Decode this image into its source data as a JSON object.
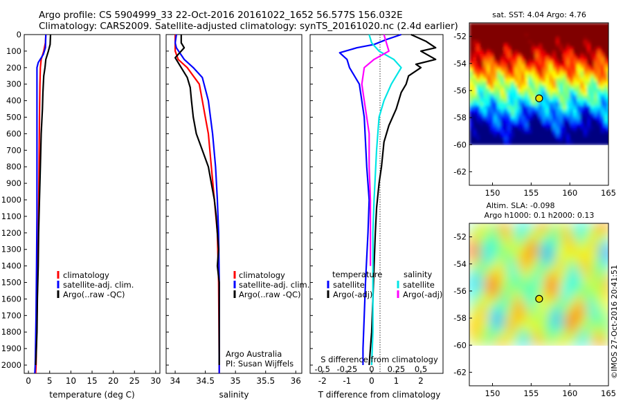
{
  "header": {
    "line1": "Argo profile: CS 5904999_33 22-Oct-2016 20161022_1652 56.577S 156.032E",
    "line2": "Climatology: CARS2009. Satellite-adjusted climatology: synTS_20161020.nc (2.4d earlier)"
  },
  "watermark": "©IMOS 27-Oct-2016 20:41:51",
  "colors": {
    "climatology": "#ff0000",
    "satellite": "#0000ff",
    "argo": "#000000",
    "salinity_satellite": "#00e5e5",
    "salinity_argo": "#ff00ff"
  },
  "chart_data": [
    {
      "type": "line",
      "panel": "temperature",
      "xlabel": "temperature (deg C)",
      "ylim": [
        2050,
        0
      ],
      "xlim": [
        -1,
        31
      ],
      "xticks": [
        "0",
        "5",
        "10",
        "15",
        "20",
        "25",
        "30"
      ],
      "yticks": [
        "0",
        "100",
        "200",
        "300",
        "400",
        "500",
        "600",
        "700",
        "800",
        "900",
        "1000",
        "1100",
        "1200",
        "1300",
        "1400",
        "1500",
        "1600",
        "1700",
        "1800",
        "1900",
        "2000"
      ],
      "legend": [
        "climatology",
        "satellite-adj. clim.",
        "Argo(..raw -QC)"
      ],
      "series": [
        {
          "name": "climatology",
          "color": "#ff0000",
          "points": [
            [
              4.1,
              0
            ],
            [
              4.0,
              50
            ],
            [
              3.6,
              100
            ],
            [
              3.0,
              150
            ],
            [
              2.8,
              200
            ],
            [
              2.7,
              300
            ],
            [
              2.6,
              500
            ],
            [
              2.5,
              800
            ],
            [
              2.4,
              1100
            ],
            [
              2.2,
              1400
            ],
            [
              2.0,
              1700
            ],
            [
              1.8,
              2000
            ],
            [
              1.7,
              2050
            ]
          ]
        },
        {
          "name": "satellite-adj. clim.",
          "color": "#0000ff",
          "points": [
            [
              4.1,
              0
            ],
            [
              4.0,
              80
            ],
            [
              3.5,
              120
            ],
            [
              2.3,
              170
            ],
            [
              2.0,
              200
            ],
            [
              2.0,
              300
            ],
            [
              2.0,
              500
            ],
            [
              2.0,
              800
            ],
            [
              2.0,
              1100
            ],
            [
              1.9,
              1400
            ],
            [
              1.8,
              1700
            ],
            [
              1.6,
              2000
            ],
            [
              1.5,
              2050
            ]
          ]
        },
        {
          "name": "Argo(..raw -QC)",
          "color": "#000000",
          "points": [
            [
              5.2,
              0
            ],
            [
              5.1,
              60
            ],
            [
              4.7,
              100
            ],
            [
              4.1,
              150
            ],
            [
              3.9,
              200
            ],
            [
              3.6,
              250
            ],
            [
              3.4,
              350
            ],
            [
              3.3,
              450
            ],
            [
              3.0,
              600
            ],
            [
              2.8,
              800
            ],
            [
              2.6,
              1000
            ],
            [
              2.4,
              1200
            ],
            [
              2.3,
              1400
            ],
            [
              2.1,
              1600
            ],
            [
              2.0,
              1800
            ],
            [
              1.8,
              1950
            ],
            [
              1.7,
              2000
            ]
          ]
        }
      ]
    },
    {
      "type": "line",
      "panel": "salinity",
      "xlabel": "salinity",
      "ylim": [
        2050,
        0
      ],
      "xlim": [
        33.85,
        36.1
      ],
      "xticks": [
        "34",
        "34.5",
        "35",
        "35.5",
        "36"
      ],
      "legend": [
        "climatology",
        "satellite-adj. clim.",
        "Argo(..raw -QC)"
      ],
      "annotations": [
        "Argo Australia",
        "PI: Susan Wijffels"
      ],
      "series": [
        {
          "name": "climatology",
          "color": "#ff0000",
          "points": [
            [
              34.0,
              0
            ],
            [
              34.0,
              100
            ],
            [
              34.05,
              150
            ],
            [
              34.2,
              200
            ],
            [
              34.3,
              250
            ],
            [
              34.4,
              300
            ],
            [
              34.45,
              400
            ],
            [
              34.5,
              500
            ],
            [
              34.55,
              600
            ],
            [
              34.6,
              800
            ],
            [
              34.65,
              1000
            ],
            [
              34.7,
              1200
            ],
            [
              34.72,
              1500
            ],
            [
              34.73,
              2000
            ],
            [
              34.73,
              2050
            ]
          ]
        },
        {
          "name": "satellite-adj. clim.",
          "color": "#0000ff",
          "points": [
            [
              34.02,
              0
            ],
            [
              34.0,
              50
            ],
            [
              34.02,
              80
            ],
            [
              34.15,
              150
            ],
            [
              34.3,
              200
            ],
            [
              34.45,
              260
            ],
            [
              34.55,
              400
            ],
            [
              34.62,
              600
            ],
            [
              34.67,
              800
            ],
            [
              34.7,
              1000
            ],
            [
              34.72,
              1200
            ],
            [
              34.73,
              1500
            ],
            [
              34.73,
              2000
            ],
            [
              34.73,
              2050
            ]
          ]
        },
        {
          "name": "Argo(..raw -QC)",
          "color": "#000000",
          "points": [
            [
              34.1,
              0
            ],
            [
              34.1,
              50
            ],
            [
              34.15,
              80
            ],
            [
              34.1,
              100
            ],
            [
              34.0,
              140
            ],
            [
              34.1,
              200
            ],
            [
              34.2,
              260
            ],
            [
              34.25,
              320
            ],
            [
              34.27,
              400
            ],
            [
              34.3,
              500
            ],
            [
              34.35,
              600
            ],
            [
              34.45,
              700
            ],
            [
              34.55,
              800
            ],
            [
              34.6,
              900
            ],
            [
              34.65,
              1000
            ],
            [
              34.68,
              1100
            ],
            [
              34.7,
              1200
            ],
            [
              34.72,
              1300
            ],
            [
              34.7,
              1400
            ],
            [
              34.73,
              1500
            ],
            [
              34.73,
              1700
            ],
            [
              34.73,
              1900
            ],
            [
              34.73,
              2000
            ]
          ]
        }
      ]
    },
    {
      "type": "line",
      "panel": "difference",
      "xlabel": "T difference from climatology",
      "xlabel_top": "S difference from climatology",
      "ylim": [
        2050,
        0
      ],
      "xlim": [
        -2.5,
        2.9
      ],
      "xticks": [
        "-2",
        "-1",
        "0",
        "1",
        "2"
      ],
      "xticks_top": [
        "-0.5",
        "-0.25",
        "0",
        "0.25",
        "0.5"
      ],
      "legend_groups": [
        "temperature",
        "salinity"
      ],
      "legend": [
        "satellite",
        "Argo(-adj)",
        "satellite",
        "Argo(-adj)"
      ],
      "series": [
        {
          "name": "satellite",
          "group": "temperature",
          "color": "#0000ff",
          "points": [
            [
              1.2,
              0
            ],
            [
              0.6,
              30
            ],
            [
              0.1,
              60
            ],
            [
              -0.6,
              80
            ],
            [
              -1.3,
              110
            ],
            [
              -1.0,
              150
            ],
            [
              -0.9,
              200
            ],
            [
              -0.5,
              300
            ],
            [
              -0.3,
              500
            ],
            [
              -0.2,
              800
            ],
            [
              -0.1,
              1000
            ],
            [
              -0.15,
              1200
            ],
            [
              -0.25,
              1500
            ],
            [
              -0.3,
              1700
            ],
            [
              -0.35,
              1900
            ],
            [
              -0.35,
              2000
            ]
          ]
        },
        {
          "name": "Argo(-adj)",
          "group": "temperature",
          "color": "#000000",
          "points": [
            [
              1.6,
              0
            ],
            [
              2.2,
              40
            ],
            [
              2.6,
              80
            ],
            [
              2.0,
              100
            ],
            [
              2.6,
              150
            ],
            [
              1.8,
              180
            ],
            [
              2.0,
              200
            ],
            [
              1.5,
              250
            ],
            [
              1.4,
              300
            ],
            [
              1.2,
              350
            ],
            [
              1.0,
              450
            ],
            [
              0.7,
              550
            ],
            [
              0.5,
              650
            ],
            [
              0.4,
              800
            ],
            [
              0.3,
              900
            ],
            [
              0.2,
              1050
            ],
            [
              0.15,
              1200
            ],
            [
              0.1,
              1400
            ],
            [
              0.05,
              1600
            ],
            [
              0.0,
              1800
            ],
            [
              -0.05,
              1900
            ],
            [
              -0.1,
              2000
            ]
          ]
        },
        {
          "name": "satellite",
          "group": "salinity",
          "color": "#00e5e5",
          "points": [
            [
              -0.1,
              0
            ],
            [
              0.0,
              50
            ],
            [
              0.3,
              100
            ],
            [
              0.9,
              150
            ],
            [
              1.2,
              200
            ],
            [
              0.8,
              300
            ],
            [
              0.5,
              400
            ],
            [
              0.3,
              500
            ],
            [
              0.2,
              700
            ],
            [
              0.1,
              1000
            ],
            [
              0.05,
              1200
            ],
            [
              0.05,
              1500
            ],
            [
              0.05,
              1800
            ],
            [
              0.0,
              2000
            ]
          ]
        },
        {
          "name": "Argo(-adj)",
          "group": "salinity",
          "color": "#ff00ff",
          "points": [
            [
              0.5,
              0
            ],
            [
              0.6,
              50
            ],
            [
              0.7,
              100
            ],
            [
              0.1,
              150
            ],
            [
              -0.3,
              200
            ],
            [
              -0.4,
              300
            ],
            [
              -0.3,
              400
            ],
            [
              -0.2,
              500
            ],
            [
              -0.1,
              600
            ],
            [
              -0.1,
              800
            ],
            [
              -0.05,
              1000
            ],
            [
              -0.05,
              1200
            ],
            [
              -0.05,
              1400
            ]
          ]
        }
      ]
    },
    {
      "type": "heatmap",
      "panel": "sst_map",
      "title": "sat. SST: 4.04  Argo: 4.76",
      "xlim": [
        147,
        165
      ],
      "ylim": [
        -63,
        -51
      ],
      "xticks": [
        "150",
        "155",
        "160",
        "165"
      ],
      "yticks": [
        "-52",
        "-54",
        "-56",
        "-58",
        "-60",
        "-62"
      ],
      "data_extent_lat": [
        -60,
        -51
      ],
      "colormap": "jet",
      "float_position": {
        "lon": 156.032,
        "lat": -56.577
      }
    },
    {
      "type": "heatmap",
      "panel": "sla_map",
      "title": "Altim. SLA: -0.098",
      "subtitle": "Argo h1000: 0.1  h2000: 0.13",
      "xlim": [
        147,
        165
      ],
      "ylim": [
        -63,
        -51
      ],
      "xticks": [
        "150",
        "155",
        "160",
        "165"
      ],
      "yticks": [
        "-52",
        "-54",
        "-56",
        "-58",
        "-60",
        "-62"
      ],
      "data_extent_lat": [
        -60,
        -51
      ],
      "colormap": "jet",
      "float_position": {
        "lon": 156.032,
        "lat": -56.577
      }
    }
  ]
}
